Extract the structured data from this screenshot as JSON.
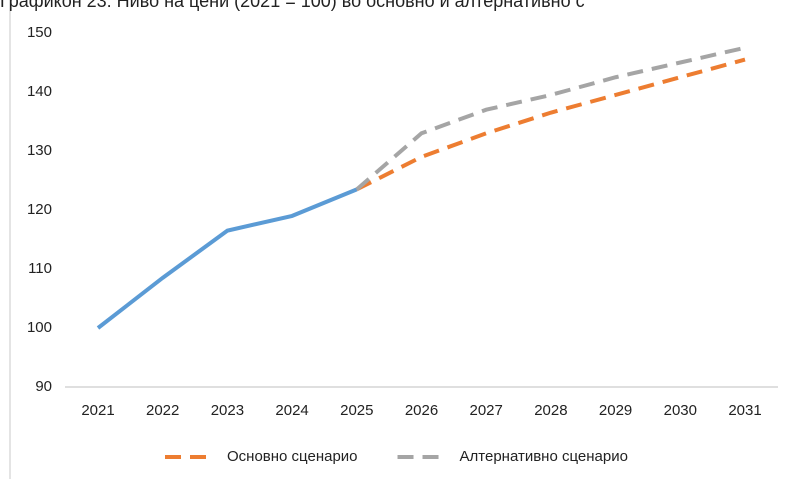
{
  "chart_data": {
    "type": "line",
    "title": "Графикон 23: Ниво на цени (2021 = 100) во основно и алтернативно с",
    "categories": [
      "2021",
      "2022",
      "2023",
      "2024",
      "2025",
      "2026",
      "2027",
      "2028",
      "2029",
      "2030",
      "2031"
    ],
    "series": [
      {
        "color": "#5b9bd5",
        "dashed": false,
        "values": [
          100,
          108.5,
          116.5,
          119,
          123.5,
          null,
          null,
          null,
          null,
          null,
          null
        ]
      },
      {
        "name": "Основно сценарио",
        "color": "#ed7d31",
        "dashed": true,
        "values": [
          null,
          null,
          null,
          null,
          123.5,
          129,
          133,
          136.5,
          139.5,
          142.5,
          145.5
        ]
      },
      {
        "name": "Алтернативно сценарио",
        "color": "#a5a5a5",
        "dashed": true,
        "values": [
          null,
          null,
          null,
          null,
          123.5,
          133,
          137,
          139.5,
          142.5,
          145,
          147.5
        ]
      }
    ],
    "ylim": [
      90,
      150
    ],
    "yticks": [
      90,
      100,
      110,
      120,
      130,
      140,
      150
    ],
    "grid": false,
    "legend": "bottom"
  }
}
